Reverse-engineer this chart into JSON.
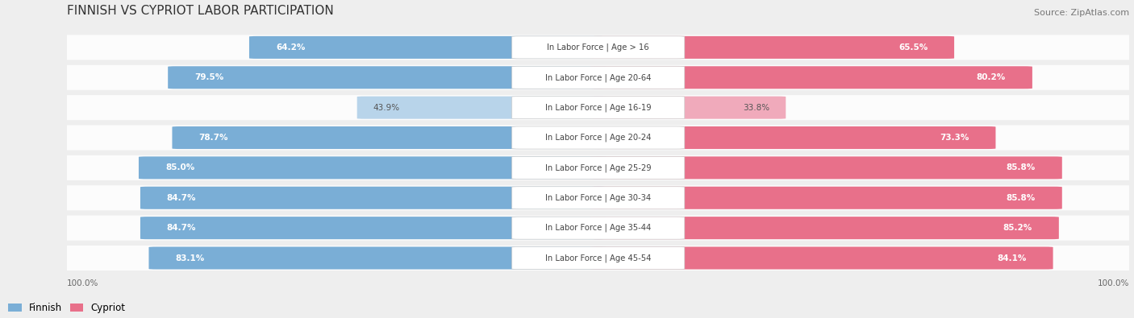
{
  "title": "FINNISH VS CYPRIOT LABOR PARTICIPATION",
  "source": "Source: ZipAtlas.com",
  "categories": [
    "In Labor Force | Age > 16",
    "In Labor Force | Age 20-64",
    "In Labor Force | Age 16-19",
    "In Labor Force | Age 20-24",
    "In Labor Force | Age 25-29",
    "In Labor Force | Age 30-34",
    "In Labor Force | Age 35-44",
    "In Labor Force | Age 45-54"
  ],
  "finnish_values": [
    64.2,
    79.5,
    43.9,
    78.7,
    85.0,
    84.7,
    84.7,
    83.1
  ],
  "cypriot_values": [
    65.5,
    80.2,
    33.8,
    73.3,
    85.8,
    85.8,
    85.2,
    84.1
  ],
  "finnish_color": "#7aaed6",
  "finnish_light_color": "#b8d4ea",
  "cypriot_color": "#e8708a",
  "cypriot_light_color": "#f0aabb",
  "bg_color": "#eeeeee",
  "max_value": 100.0,
  "label_fontsize": 7.2,
  "title_fontsize": 11,
  "source_fontsize": 8.0,
  "value_fontsize": 7.5
}
